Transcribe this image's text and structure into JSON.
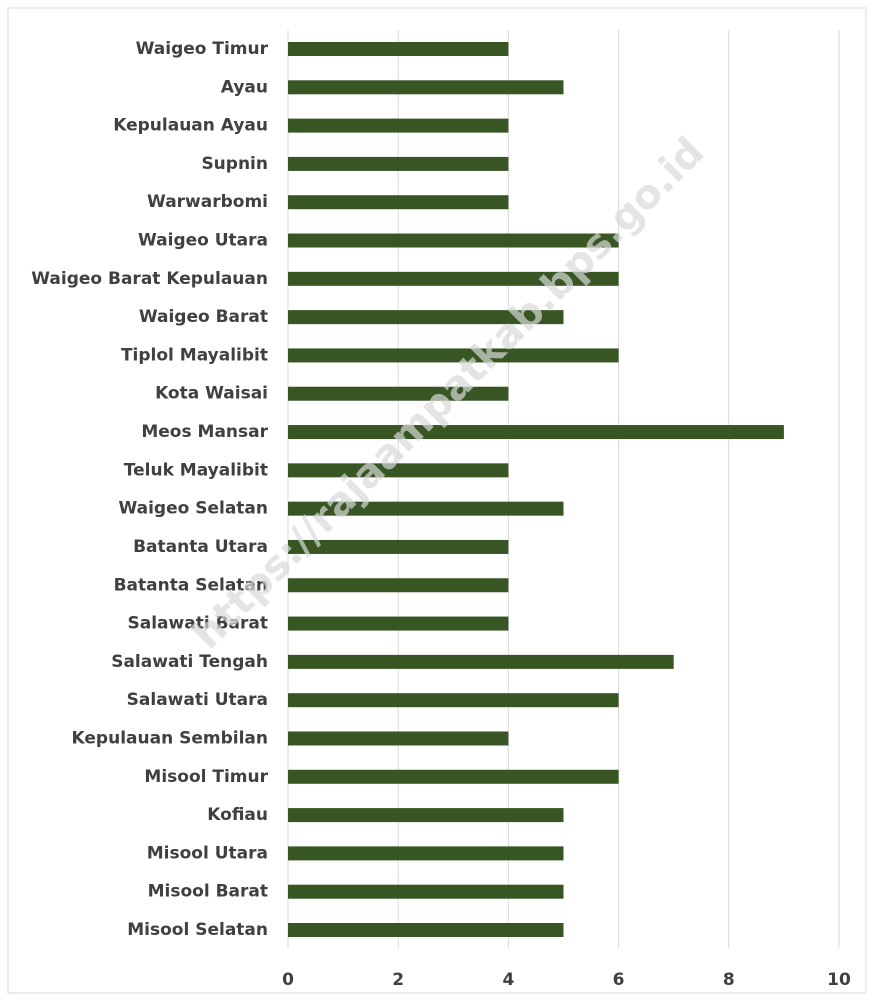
{
  "chart_data": {
    "type": "bar",
    "orientation": "horizontal",
    "categories": [
      "Waigeo Timur",
      "Ayau",
      "Kepulauan Ayau",
      "Supnin",
      "Warwarbomi",
      "Waigeo Utara",
      "Waigeo Barat Kepulauan",
      "Waigeo Barat",
      "Tiplol Mayalibit",
      "Kota Waisai",
      "Meos Mansar",
      "Teluk Mayalibit",
      "Waigeo Selatan",
      "Batanta Utara",
      "Batanta Selatan",
      "Salawati Barat",
      "Salawati Tengah",
      "Salawati Utara",
      "Kepulauan Sembilan",
      "Misool Timur",
      "Kofiau",
      "Misool Utara",
      "Misool Barat",
      "Misool Selatan"
    ],
    "values": [
      4,
      5,
      4,
      4,
      4,
      6,
      6,
      5,
      6,
      4,
      9,
      4,
      5,
      4,
      4,
      4,
      7,
      6,
      4,
      6,
      5,
      5,
      5,
      5
    ],
    "color": "#375623",
    "xlim": [
      0,
      10
    ],
    "xticks": [
      0,
      2,
      4,
      6,
      8,
      10
    ],
    "grid": true,
    "watermark": "https://rajaampatkab.bps.go.id"
  }
}
